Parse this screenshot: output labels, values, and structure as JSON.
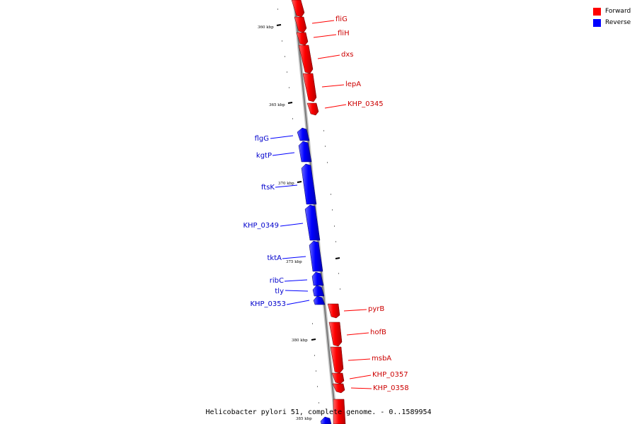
{
  "legend": {
    "forward_label": "Forward",
    "reverse_label": "Reverse",
    "forward_color": "#ff0000",
    "reverse_color": "#0000ff"
  },
  "caption": "Helicobacter pylori 51, complete genome. - 0..1589954",
  "scale": {
    "labels": [
      "360 kbp",
      "365 kbp",
      "370 kbp",
      "375 kbp",
      "380 kbp",
      "385 kbp"
    ]
  },
  "genes": {
    "forward": [
      "fliG",
      "fliH",
      "dxs",
      "lepA",
      "KHP_0345",
      "pyrB",
      "hofB",
      "msbA",
      "KHP_0357",
      "KHP_0358"
    ],
    "reverse": [
      "flgG",
      "kgtP",
      "ftsK",
      "KHP_0349",
      "tktA",
      "ribC",
      "tly",
      "KHP_0353"
    ]
  },
  "colors": {
    "backbone": "#8c8c8c",
    "forward": "#ff0000",
    "reverse": "#0000ff"
  }
}
